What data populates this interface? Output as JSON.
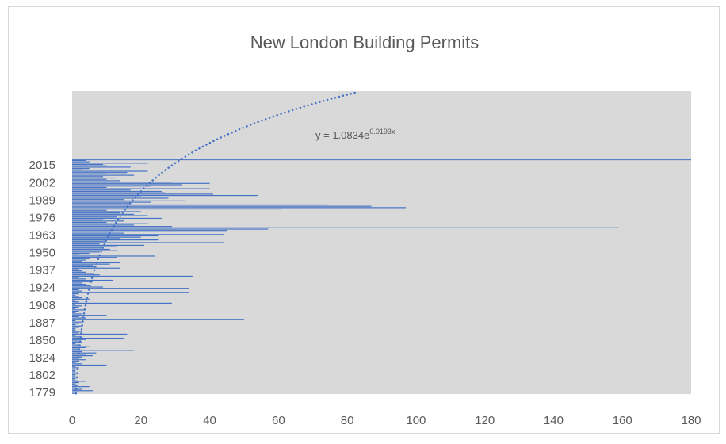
{
  "chart_data": {
    "type": "bar",
    "orientation": "horizontal",
    "title": "New London Building Permits",
    "color": "#4472c4",
    "categories": [
      "1779",
      null,
      null,
      null,
      null,
      null,
      null,
      null,
      null,
      null,
      null,
      null,
      null,
      "1802",
      null,
      null,
      null,
      null,
      null,
      null,
      null,
      null,
      null,
      null,
      null,
      null,
      "1824",
      null,
      null,
      null,
      null,
      null,
      null,
      null,
      null,
      null,
      null,
      null,
      null,
      "1850",
      null,
      null,
      null,
      null,
      null,
      null,
      null,
      null,
      null,
      null,
      null,
      null,
      "1887",
      null,
      null,
      null,
      null,
      null,
      null,
      null,
      null,
      null,
      null,
      null,
      null,
      "1908",
      null,
      null,
      null,
      null,
      null,
      null,
      null,
      null,
      null,
      null,
      null,
      null,
      "1924",
      null,
      null,
      null,
      null,
      null,
      null,
      null,
      null,
      null,
      null,
      null,
      null,
      "1937",
      null,
      null,
      null,
      null,
      null,
      null,
      null,
      null,
      null,
      null,
      null,
      null,
      "1950",
      null,
      null,
      null,
      null,
      null,
      null,
      null,
      null,
      null,
      null,
      null,
      null,
      "1963",
      null,
      null,
      null,
      null,
      null,
      null,
      null,
      null,
      null,
      null,
      null,
      null,
      "1976",
      null,
      null,
      null,
      null,
      null,
      null,
      null,
      null,
      null,
      null,
      null,
      null,
      "1989",
      null,
      null,
      null,
      null,
      null,
      null,
      null,
      null,
      null,
      null,
      null,
      null,
      "2002",
      null,
      null,
      null,
      null,
      null,
      null,
      null,
      null,
      null,
      null,
      null,
      null,
      "2015",
      null,
      null,
      null,
      null
    ],
    "values": [
      1,
      2,
      6,
      3,
      1,
      5,
      1,
      1,
      2,
      4,
      1,
      1,
      1,
      1,
      1,
      2,
      1,
      1,
      1,
      2,
      1,
      10,
      3,
      1,
      2,
      4,
      2,
      3,
      6,
      4,
      7,
      3,
      18,
      2,
      4,
      5,
      2,
      1,
      3,
      2,
      4,
      15,
      3,
      1,
      16,
      2,
      3,
      1,
      1,
      2,
      3,
      1,
      2,
      3,
      1,
      50,
      4,
      2,
      10,
      3,
      1,
      2,
      4,
      1,
      2,
      3,
      1,
      29,
      2,
      1,
      5,
      3,
      2,
      1,
      2,
      34,
      3,
      2,
      34,
      9,
      5,
      4,
      3,
      6,
      12,
      4,
      2,
      35,
      8,
      6,
      4,
      3,
      2,
      14,
      7,
      6,
      11,
      14,
      3,
      4,
      5,
      13,
      24,
      2,
      5,
      8,
      13,
      11,
      9,
      13,
      21,
      8,
      44,
      10,
      25,
      14,
      20,
      25,
      44,
      15,
      12,
      45,
      57,
      159,
      29,
      18,
      22,
      10,
      15,
      9,
      26,
      13,
      22,
      18,
      14,
      20,
      10,
      61,
      97,
      87,
      74,
      17,
      23,
      33,
      15,
      28,
      20,
      54,
      41,
      27,
      26,
      17,
      40,
      10,
      23,
      32,
      40,
      29,
      14,
      10,
      13,
      9,
      18,
      10,
      16,
      22,
      3,
      5,
      17,
      10,
      9,
      22,
      5,
      4
    ],
    "xlim": [
      0,
      180
    ],
    "xticks": [
      0,
      20,
      40,
      60,
      80,
      100,
      120,
      140,
      160,
      180
    ],
    "trendline": {
      "coefficient": 1.0834,
      "rate": 0.0193,
      "forecast_forward": 51,
      "label_base": "y = 1.0834e",
      "label_exponent": "0.0193x"
    }
  }
}
